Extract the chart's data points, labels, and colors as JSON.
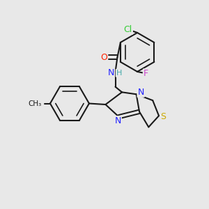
{
  "background_color": "#e8e8e8",
  "bond_color": "#1a1a1a",
  "atom_colors": {
    "Cl": "#33cc33",
    "F": "#cc44cc",
    "O": "#ff2200",
    "N": "#2222ff",
    "H": "#44aaaa",
    "S": "#ccaa00",
    "C": "#1a1a1a"
  },
  "figsize": [
    3.0,
    3.0
  ],
  "dpi": 100
}
